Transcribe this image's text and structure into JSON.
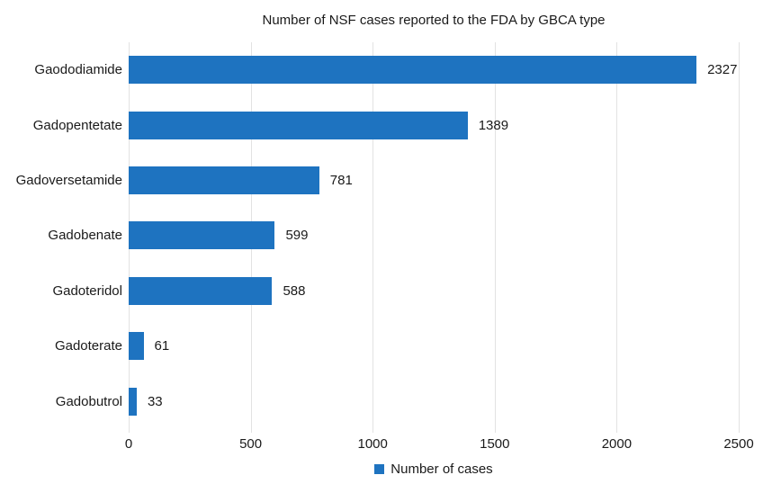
{
  "chart_data": {
    "type": "bar",
    "orientation": "horizontal",
    "title": "Number of NSF cases reported to the FDA by GBCA type",
    "categories": [
      "Gaododiamide",
      "Gadopentetate",
      "Gadoversetamide",
      "Gadobenate",
      "Gadoteridol",
      "Gadoterate",
      "Gadobutrol"
    ],
    "values": [
      2327,
      1389,
      781,
      599,
      588,
      61,
      33
    ],
    "xlabel": "",
    "ylabel": "",
    "xlim": [
      0,
      2500
    ],
    "x_ticks": [
      0,
      500,
      1000,
      1500,
      2000,
      2500
    ],
    "grid": "vertical-only",
    "data_labels": true,
    "legend_label": "Number of cases",
    "legend_position": "bottom-center",
    "bar_color": "#1e73c0",
    "gridline_color": "#e2e2e2",
    "background_color": "#ffffff"
  }
}
